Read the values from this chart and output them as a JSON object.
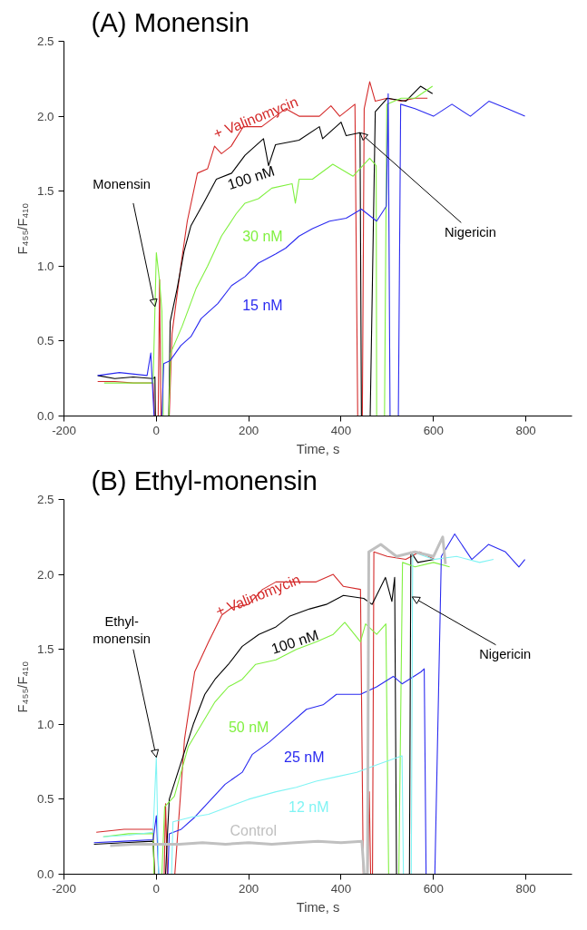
{
  "chart_data": [
    {
      "type": "line",
      "title": "(A) Monensin",
      "xlabel": "Time, s",
      "ylabel": "F₄₅₅/F₄₁₀",
      "xlim": [
        -200,
        900
      ],
      "ylim": [
        0,
        2.5
      ],
      "xticks": [
        -200,
        0,
        200,
        400,
        600,
        800
      ],
      "yticks": [
        {
          "value": 0,
          "label": "0.0"
        },
        {
          "value": 0.5,
          "label": "0.5"
        },
        {
          "value": 1,
          "label": "1.0"
        },
        {
          "value": 1.5,
          "label": "1.5"
        },
        {
          "value": 2,
          "label": "2.0"
        },
        {
          "value": 2.5,
          "label": "2.5"
        }
      ],
      "grid": false,
      "marker": "none",
      "line_style": "solid",
      "annotations": [
        {
          "text": "Monensin",
          "x": -3,
          "y": 0.73
        },
        {
          "text": "Nigericin",
          "x": 441,
          "y": 1.89
        }
      ],
      "series": [
        {
          "name": "+ Valinomycin",
          "color": "#d42a2a",
          "x": [
            -127,
            -90,
            -50,
            -7,
            -4,
            4,
            7,
            10,
            28,
            34,
            53,
            67,
            89,
            111,
            126,
            141,
            162,
            188,
            228,
            258,
            280,
            309,
            353,
            378,
            397,
            430,
            436,
            446,
            450,
            462,
            474,
            500,
            530,
            560,
            587
          ],
          "values": [
            0.23,
            0.23,
            0.22,
            0.22,
            0,
            0,
            0.91,
            0,
            0,
            0.55,
            1.0,
            1.3,
            1.62,
            1.65,
            1.8,
            1.75,
            1.8,
            1.93,
            1.93,
            2.0,
            2.05,
            2.0,
            2.0,
            2.07,
            2.0,
            2.08,
            0,
            0,
            2.05,
            2.23,
            2.1,
            2.12,
            2.1,
            2.12,
            2.12
          ]
        },
        {
          "name": "100 nM",
          "color": "#000000",
          "x": [
            -127,
            -90,
            -50,
            -7,
            -3,
            -2,
            27,
            30,
            45,
            60,
            75,
            104,
            130,
            163,
            192,
            232,
            243,
            258,
            309,
            353,
            360,
            400,
            411,
            441,
            444,
            463,
            474,
            500,
            540,
            572,
            598
          ],
          "values": [
            0.27,
            0.25,
            0.26,
            0.25,
            0.26,
            0,
            0,
            0.63,
            0.85,
            1.1,
            1.27,
            1.43,
            1.58,
            1.62,
            1.74,
            1.85,
            1.67,
            1.81,
            1.84,
            1.93,
            1.85,
            1.96,
            1.87,
            1.89,
            0,
            0,
            2.03,
            2.12,
            2.1,
            2.2,
            2.15
          ]
        },
        {
          "name": "30 nM",
          "color": "#80f040",
          "x": [
            -113,
            -70,
            -7,
            0,
            7,
            12,
            15,
            27,
            31,
            56,
            86,
            111,
            141,
            173,
            192,
            221,
            250,
            294,
            301,
            309,
            338,
            382,
            426,
            462,
            476,
            477,
            494,
            499,
            530,
            560,
            598
          ],
          "values": [
            0.22,
            0.22,
            0.22,
            1.09,
            0.9,
            0.7,
            0,
            0,
            0.42,
            0.6,
            0.85,
            1.0,
            1.2,
            1.35,
            1.42,
            1.45,
            1.52,
            1.55,
            1.42,
            1.58,
            1.58,
            1.68,
            1.6,
            1.72,
            1.67,
            0,
            0,
            2.08,
            2.12,
            2.12,
            2.2
          ]
        },
        {
          "name": "15 nM",
          "color": "#2a2af0",
          "x": [
            -127,
            -80,
            -20,
            -12,
            -5,
            12,
            16,
            30,
            53,
            75,
            97,
            133,
            163,
            192,
            221,
            258,
            280,
            309,
            338,
            375,
            411,
            444,
            477,
            498,
            502,
            506,
            524,
            529,
            560,
            600,
            640,
            680,
            720,
            760,
            798
          ],
          "values": [
            0.27,
            0.29,
            0.27,
            0.42,
            0,
            0,
            0.35,
            0.37,
            0.47,
            0.53,
            0.65,
            0.75,
            0.87,
            0.93,
            1.02,
            1.08,
            1.12,
            1.2,
            1.25,
            1.3,
            1.32,
            1.38,
            1.3,
            1.4,
            2.15,
            0,
            0,
            2.08,
            2.05,
            2.0,
            2.08,
            2.0,
            2.1,
            2.05,
            2.0
          ]
        }
      ]
    },
    {
      "type": "line",
      "title": "(B) Ethyl-monensin",
      "xlabel": "Time, s",
      "ylabel": "F₄₅₅/F₄₁₀",
      "xlim": [
        -200,
        900
      ],
      "ylim": [
        0,
        2.5
      ],
      "xticks": [
        -200,
        0,
        200,
        400,
        600,
        800
      ],
      "yticks": [
        {
          "value": 0,
          "label": "0.0"
        },
        {
          "value": 0.5,
          "label": "0.5"
        },
        {
          "value": 1,
          "label": "1.0"
        },
        {
          "value": 1.5,
          "label": "1.5"
        },
        {
          "value": 2,
          "label": "2.0"
        },
        {
          "value": 2.5,
          "label": "2.5"
        }
      ],
      "grid": false,
      "marker": "none",
      "line_style": "solid",
      "annotations": [
        {
          "text": "Ethyl-\nmonensin",
          "x": 0,
          "y": 0.78
        },
        {
          "text": "Nigericin",
          "x": 554,
          "y": 1.85
        }
      ],
      "series": [
        {
          "name": "+ Valinomycin",
          "color": "#d42a2a",
          "x": [
            -130,
            -70,
            -7,
            -4,
            17,
            20,
            24,
            40,
            61,
            83,
            113,
            142,
            164,
            200,
            230,
            259,
            303,
            346,
            383,
            405,
            442,
            448,
            458,
            461,
            464,
            468,
            471,
            500,
            540,
            570,
            602
          ],
          "values": [
            0.28,
            0.3,
            0.3,
            0,
            0,
            0.47,
            0,
            0,
            0.9,
            1.35,
            1.55,
            1.73,
            1.78,
            1.8,
            1.9,
            1.95,
            1.95,
            1.95,
            2.0,
            1.92,
            1.9,
            0,
            0,
            0.55,
            0,
            0,
            2.15,
            2.12,
            2.1,
            2.15,
            2.1
          ]
        },
        {
          "name": "100 nM",
          "color": "#000000",
          "x": [
            -135,
            -70,
            -7,
            -4,
            20,
            24,
            28,
            54,
            80,
            105,
            127,
            156,
            186,
            222,
            259,
            288,
            332,
            368,
            405,
            449,
            467,
            496,
            510,
            516,
            520,
            548,
            551,
            566,
            602
          ],
          "values": [
            0.2,
            0.21,
            0.22,
            0,
            0,
            0.26,
            0.5,
            0.75,
            1.0,
            1.2,
            1.3,
            1.4,
            1.52,
            1.6,
            1.65,
            1.72,
            1.77,
            1.8,
            1.86,
            1.84,
            1.8,
            1.98,
            1.82,
            1.98,
            0,
            0,
            2.15,
            2.08,
            2.1
          ]
        },
        {
          "name": "50 nM",
          "color": "#80f040",
          "x": [
            -115,
            -60,
            -7,
            -5,
            12,
            18,
            39,
            69,
            98,
            127,
            156,
            186,
            215,
            259,
            303,
            346,
            383,
            408,
            442,
            453,
            477,
            497,
            503,
            525,
            533,
            560,
            600,
            635
          ],
          "values": [
            0.25,
            0.27,
            0.27,
            0,
            0,
            0.45,
            0.52,
            0.85,
            1.0,
            1.15,
            1.25,
            1.3,
            1.4,
            1.43,
            1.5,
            1.55,
            1.6,
            1.68,
            1.55,
            1.67,
            1.6,
            1.67,
            0,
            0,
            2.08,
            2.05,
            2.08,
            2.05
          ]
        },
        {
          "name": "25 nM",
          "color": "#2a2af0",
          "x": [
            -135,
            -70,
            -7,
            0,
            5,
            25,
            28,
            54,
            83,
            113,
            149,
            186,
            208,
            244,
            281,
            325,
            361,
            390,
            442,
            477,
            513,
            532,
            573,
            580,
            584,
            603,
            617,
            646,
            683,
            719,
            756,
            785,
            798
          ],
          "values": [
            0.21,
            0.22,
            0.23,
            0.39,
            0,
            0,
            0.27,
            0.3,
            0.38,
            0.48,
            0.6,
            0.68,
            0.8,
            0.88,
            0.98,
            1.1,
            1.13,
            1.2,
            1.2,
            1.25,
            1.32,
            1.27,
            1.35,
            1.37,
            0,
            0,
            2.12,
            2.27,
            2.1,
            2.2,
            2.15,
            2.05,
            2.1
          ]
        },
        {
          "name": "12 nM",
          "color": "#80f4f4",
          "x": [
            -115,
            -60,
            -7,
            0,
            5,
            33,
            36,
            75,
            113,
            156,
            200,
            259,
            303,
            346,
            390,
            434,
            477,
            532,
            535,
            552,
            555,
            600,
            650,
            700,
            730
          ],
          "values": [
            0.25,
            0.26,
            0.28,
            0.78,
            0,
            0,
            0.35,
            0.38,
            0.4,
            0.45,
            0.5,
            0.55,
            0.58,
            0.62,
            0.65,
            0.68,
            0.73,
            0.79,
            0,
            0,
            2.15,
            2.1,
            2.12,
            2.08,
            2.1
          ]
        },
        {
          "name": "Control",
          "color": "#c0c0c0",
          "x": [
            -100,
            -50,
            0,
            50,
            100,
            150,
            200,
            250,
            300,
            350,
            400,
            445,
            450,
            457,
            460,
            486,
            520,
            560,
            600,
            620,
            626
          ],
          "values": [
            0.19,
            0.2,
            0.2,
            0.2,
            0.21,
            0.2,
            0.21,
            0.2,
            0.21,
            0.22,
            0.21,
            0.22,
            0,
            0,
            2.15,
            2.2,
            2.12,
            2.15,
            2.12,
            2.25,
            2.07
          ]
        }
      ]
    }
  ]
}
